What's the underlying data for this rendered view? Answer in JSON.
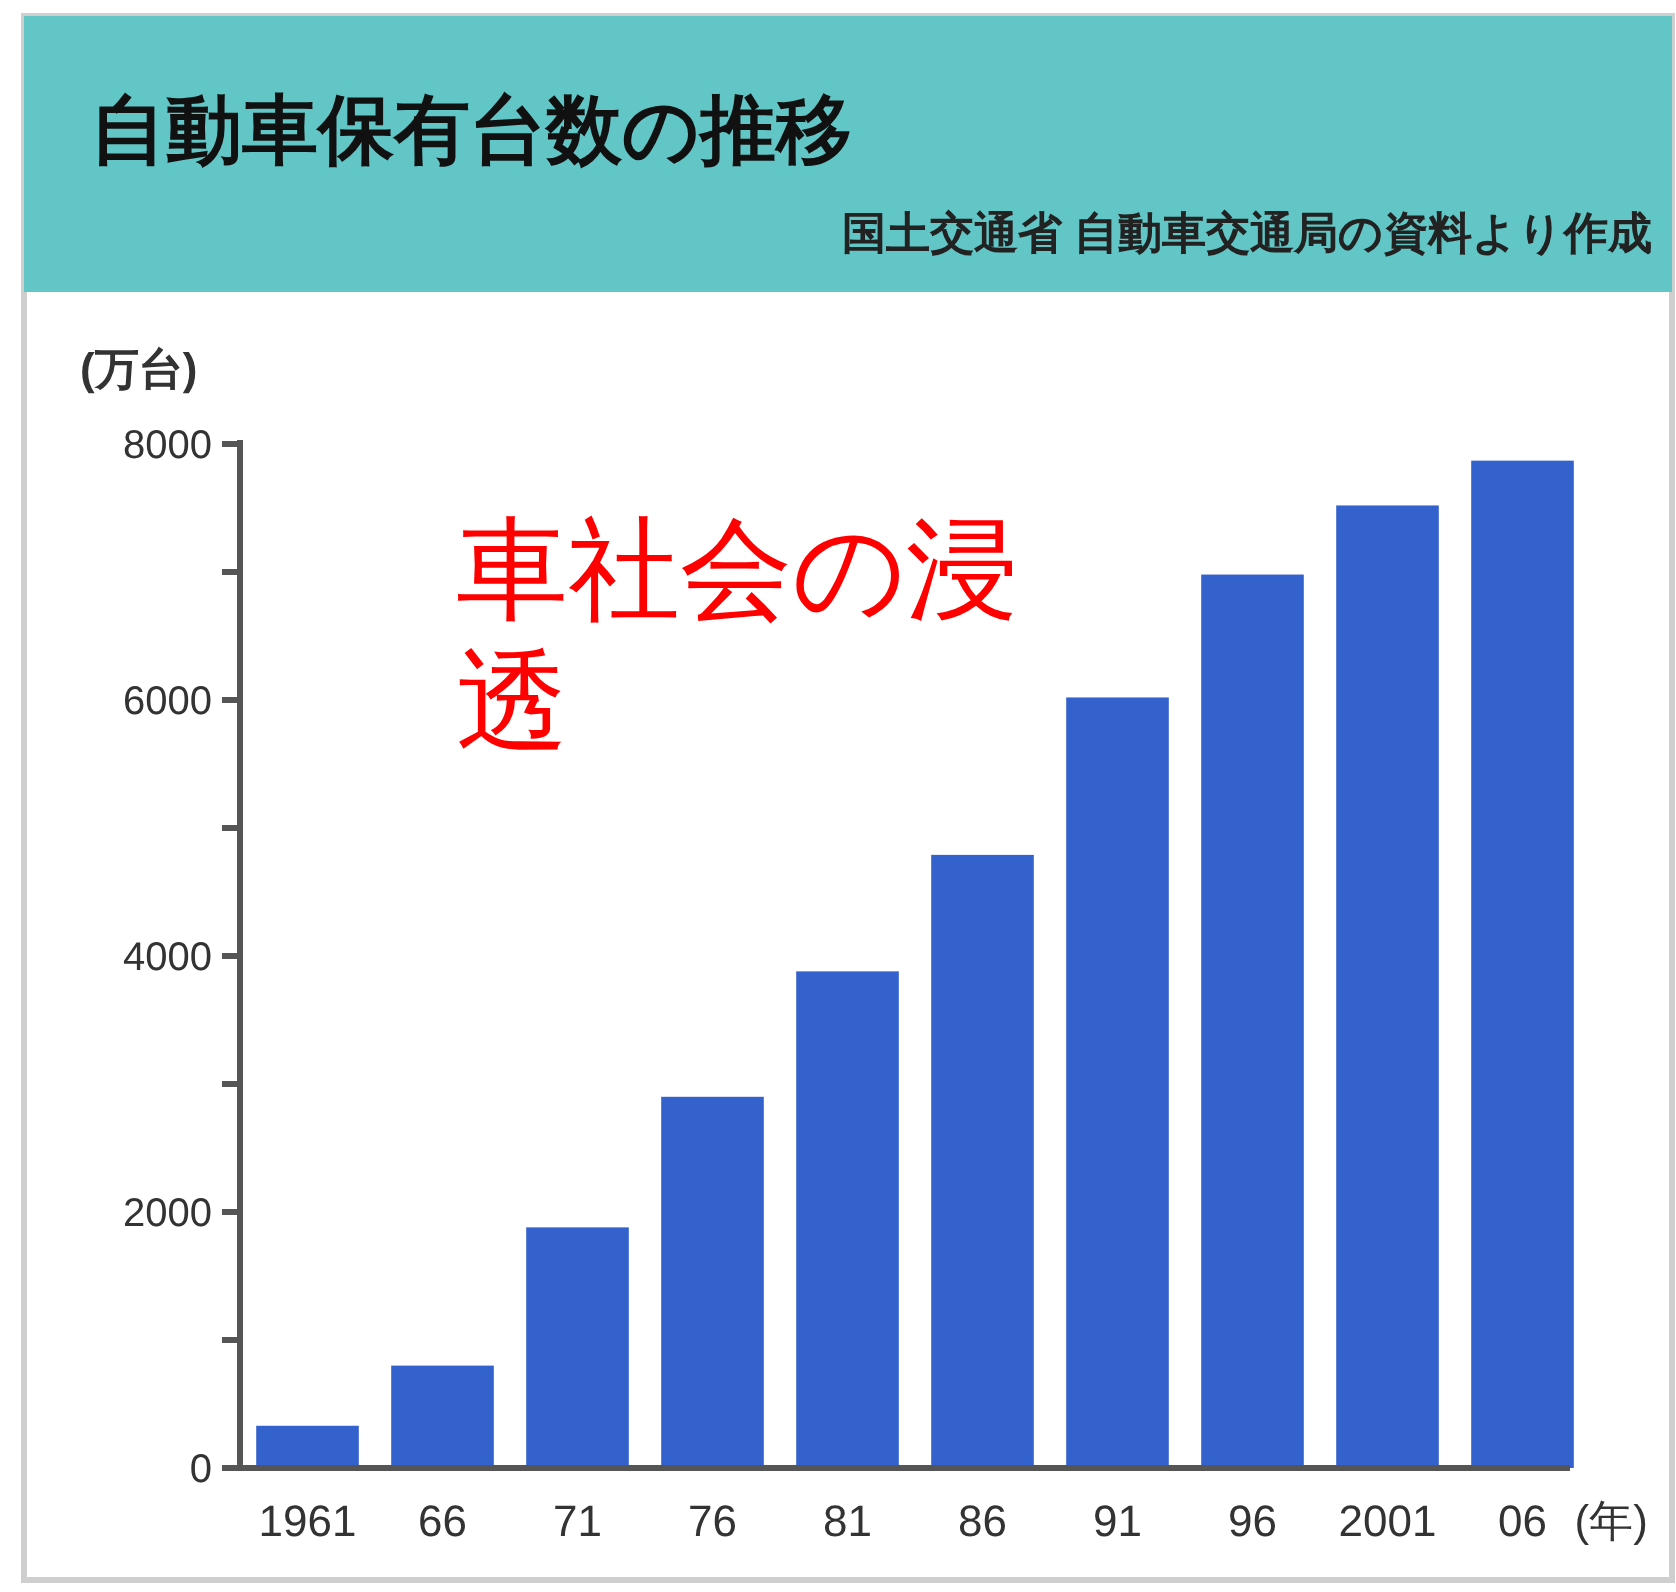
{
  "chart_data": {
    "type": "bar",
    "title": "自動車保有台数の推移",
    "subtitle": "国土交通省 自動車交通局の資料より作成",
    "ylabel": "(万台)",
    "xlabel": "(年)",
    "annotations": [
      "車社会の浸透"
    ],
    "categories": [
      "1961",
      "66",
      "71",
      "76",
      "81",
      "86",
      "91",
      "96",
      "2001",
      "06"
    ],
    "values": [
      330,
      800,
      1880,
      2900,
      3880,
      4790,
      6020,
      6980,
      7520,
      7870
    ],
    "color": "#3462cc",
    "ylim": [
      0,
      8000
    ],
    "yticks": [
      0,
      {
        "value": 1000,
        "label": null
      },
      2000,
      {
        "value": 3000,
        "label": null
      },
      4000,
      {
        "value": 5000,
        "label": null
      },
      6000,
      {
        "value": 7000,
        "label": null
      },
      8000
    ]
  }
}
